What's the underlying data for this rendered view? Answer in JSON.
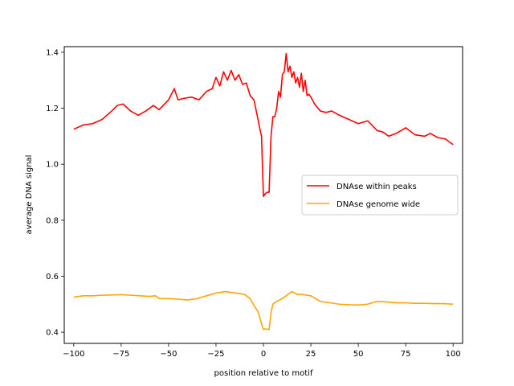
{
  "chart_data": {
    "type": "line",
    "title": "",
    "xlabel": "position relative to motif",
    "ylabel": "average DNA signal",
    "xlim": [
      -105,
      105
    ],
    "ylim": [
      0.36,
      1.42
    ],
    "xticks": [
      -100,
      -75,
      -50,
      -25,
      0,
      25,
      50,
      75,
      100
    ],
    "yticks": [
      0.4,
      0.6,
      0.8,
      1.0,
      1.2,
      1.4
    ],
    "xtick_labels": [
      "−100",
      "−75",
      "−50",
      "−25",
      "0",
      "25",
      "50",
      "75",
      "100"
    ],
    "ytick_labels": [
      "0.4",
      "0.6",
      "0.8",
      "1.0",
      "1.2",
      "1.4"
    ],
    "grid": false,
    "legend_position": "center-right",
    "series": [
      {
        "name": "DNAse within peaks",
        "color": "#ff0000",
        "x": [
          -100,
          -95,
          -90,
          -85,
          -80,
          -77,
          -74,
          -70,
          -66,
          -62,
          -58,
          -55,
          -50,
          -47,
          -45,
          -42,
          -38,
          -34,
          -30,
          -27,
          -25,
          -23,
          -21,
          -19,
          -17,
          -15,
          -13,
          -11,
          -9,
          -7,
          -5,
          -3,
          -2,
          -1,
          0,
          1,
          2,
          3,
          4,
          5,
          6,
          7,
          8,
          9,
          10,
          11,
          12,
          13,
          14,
          15,
          16,
          17,
          18,
          19,
          20,
          21,
          22,
          23,
          24,
          25,
          27,
          30,
          33,
          36,
          40,
          45,
          50,
          55,
          60,
          63,
          66,
          70,
          75,
          80,
          85,
          88,
          92,
          96,
          100
        ],
        "values": [
          1.125,
          1.14,
          1.145,
          1.16,
          1.19,
          1.21,
          1.215,
          1.19,
          1.175,
          1.19,
          1.21,
          1.195,
          1.23,
          1.27,
          1.23,
          1.235,
          1.24,
          1.23,
          1.26,
          1.27,
          1.31,
          1.28,
          1.33,
          1.3,
          1.335,
          1.3,
          1.32,
          1.285,
          1.29,
          1.245,
          1.23,
          1.165,
          1.13,
          1.1,
          0.885,
          0.895,
          0.9,
          0.9,
          1.1,
          1.17,
          1.17,
          1.2,
          1.26,
          1.24,
          1.32,
          1.33,
          1.395,
          1.33,
          1.35,
          1.31,
          1.33,
          1.29,
          1.31,
          1.275,
          1.325,
          1.26,
          1.3,
          1.245,
          1.25,
          1.24,
          1.215,
          1.19,
          1.185,
          1.19,
          1.175,
          1.16,
          1.145,
          1.155,
          1.12,
          1.115,
          1.1,
          1.11,
          1.13,
          1.105,
          1.1,
          1.11,
          1.095,
          1.09,
          1.07
        ]
      },
      {
        "name": "DNAse genome wide",
        "color": "#ffa500",
        "x": [
          -100,
          -95,
          -90,
          -85,
          -80,
          -75,
          -70,
          -65,
          -60,
          -57,
          -55,
          -50,
          -45,
          -40,
          -35,
          -30,
          -25,
          -20,
          -15,
          -10,
          -7,
          -5,
          -3,
          -2,
          -1,
          0,
          1,
          2,
          3,
          4,
          5,
          7,
          10,
          13,
          15,
          18,
          20,
          25,
          30,
          35,
          40,
          45,
          50,
          55,
          60,
          65,
          70,
          75,
          80,
          85,
          90,
          95,
          100
        ],
        "values": [
          0.525,
          0.53,
          0.53,
          0.532,
          0.533,
          0.534,
          0.532,
          0.53,
          0.528,
          0.53,
          0.52,
          0.52,
          0.518,
          0.515,
          0.52,
          0.53,
          0.54,
          0.545,
          0.54,
          0.535,
          0.52,
          0.495,
          0.475,
          0.455,
          0.43,
          0.41,
          0.412,
          0.41,
          0.41,
          0.47,
          0.5,
          0.51,
          0.52,
          0.535,
          0.545,
          0.535,
          0.535,
          0.53,
          0.51,
          0.505,
          0.5,
          0.498,
          0.497,
          0.5,
          0.51,
          0.508,
          0.505,
          0.505,
          0.503,
          0.503,
          0.502,
          0.502,
          0.5
        ]
      }
    ]
  }
}
